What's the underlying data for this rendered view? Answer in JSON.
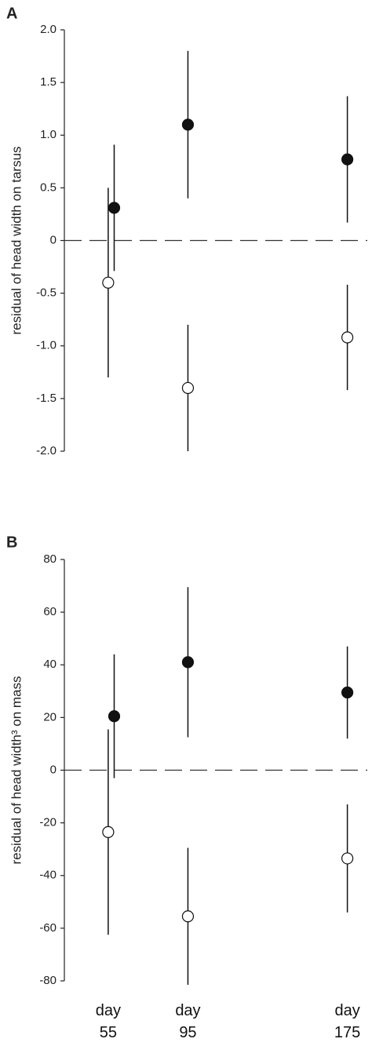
{
  "chart_data": [
    {
      "type": "errorbar",
      "label": "A",
      "ylabel": "residual of head width on tarsus",
      "xlim": [
        33,
        185
      ],
      "ylim": [
        -2,
        2
      ],
      "yticks": [
        {
          "value": 2,
          "label": "2.0"
        },
        1.5,
        {
          "value": 1,
          "label": "1.0"
        },
        0.5,
        0,
        -0.5,
        {
          "value": -1,
          "label": "-1.0"
        },
        -1.5,
        {
          "value": -2,
          "label": "-2.0"
        }
      ],
      "hline": 0,
      "series": [
        {
          "color": "#111111",
          "x": [
            58,
            95,
            175
          ],
          "values": [
            0.31,
            1.1,
            0.77
          ],
          "errors": [
            0.6,
            0.7,
            0.6
          ]
        },
        {
          "color": "#ffffff",
          "x": [
            55,
            95,
            175
          ],
          "values": [
            -0.4,
            -1.4,
            -0.92
          ],
          "errors": [
            0.9,
            0.6,
            0.5
          ]
        }
      ]
    },
    {
      "type": "errorbar",
      "label": "B",
      "ylabel": "residual of head width³ on mass",
      "xlim": [
        33,
        185
      ],
      "ylim": [
        -80,
        80
      ],
      "yticks": [
        80,
        60,
        40,
        20,
        0,
        -20,
        -40,
        -60,
        -80
      ],
      "xticks": [
        {
          "value": 55,
          "label": "day\n55"
        },
        {
          "value": 95,
          "label": "day\n95"
        },
        {
          "value": 175,
          "label": "day\n175"
        }
      ],
      "hline": 0,
      "series": [
        {
          "color": "#111111",
          "x": [
            58,
            95,
            175
          ],
          "values": [
            20.5,
            41,
            29.5
          ],
          "errors": [
            23.5,
            28.5,
            17.5
          ]
        },
        {
          "color": "#ffffff",
          "x": [
            55,
            95,
            175
          ],
          "values": [
            -23.5,
            -55.5,
            -33.5
          ],
          "errors": [
            39,
            26,
            20.5
          ]
        }
      ]
    }
  ]
}
